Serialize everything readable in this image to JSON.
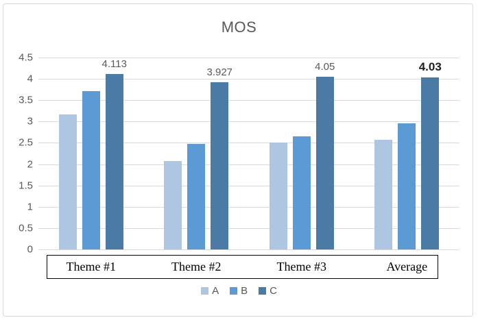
{
  "window": {
    "background_color": "#ffffff",
    "frame_border_color": "#d9d9d9"
  },
  "chart_data": {
    "type": "bar",
    "title": "MOS",
    "categories": [
      "Theme #1",
      "Theme #2",
      "Theme #3",
      "Average"
    ],
    "series": [
      {
        "name": "A",
        "color": "#aec6e2",
        "values": [
          3.17,
          2.08,
          2.5,
          2.58
        ]
      },
      {
        "name": "B",
        "color": "#5b9ad4",
        "values": [
          3.72,
          2.48,
          2.65,
          2.95
        ]
      },
      {
        "name": "C",
        "color": "#4a7ba7",
        "values": [
          4.113,
          3.927,
          4.05,
          4.03
        ],
        "data_labels": [
          {
            "text": "4.113",
            "bold": false
          },
          {
            "text": "3.927",
            "bold": false
          },
          {
            "text": "4.05",
            "bold": false
          },
          {
            "text": "4.03",
            "bold": true
          }
        ]
      }
    ],
    "ylim": [
      0,
      4.5
    ],
    "ytick_labels_top_to_bottom": [
      "4.5",
      "4",
      "3.5",
      "3",
      "2.5",
      "2",
      "1.5",
      "1",
      "0.5",
      "0"
    ],
    "grid": "horizontal",
    "gridline_color": "#d9d9d9",
    "axis_text_color": "#595959",
    "title_color": "#595959",
    "category_text_color": "#000000",
    "category_box_border_color": "#000000",
    "legend_position": "bottom",
    "legend_labels": [
      "A",
      "B",
      "C"
    ]
  }
}
